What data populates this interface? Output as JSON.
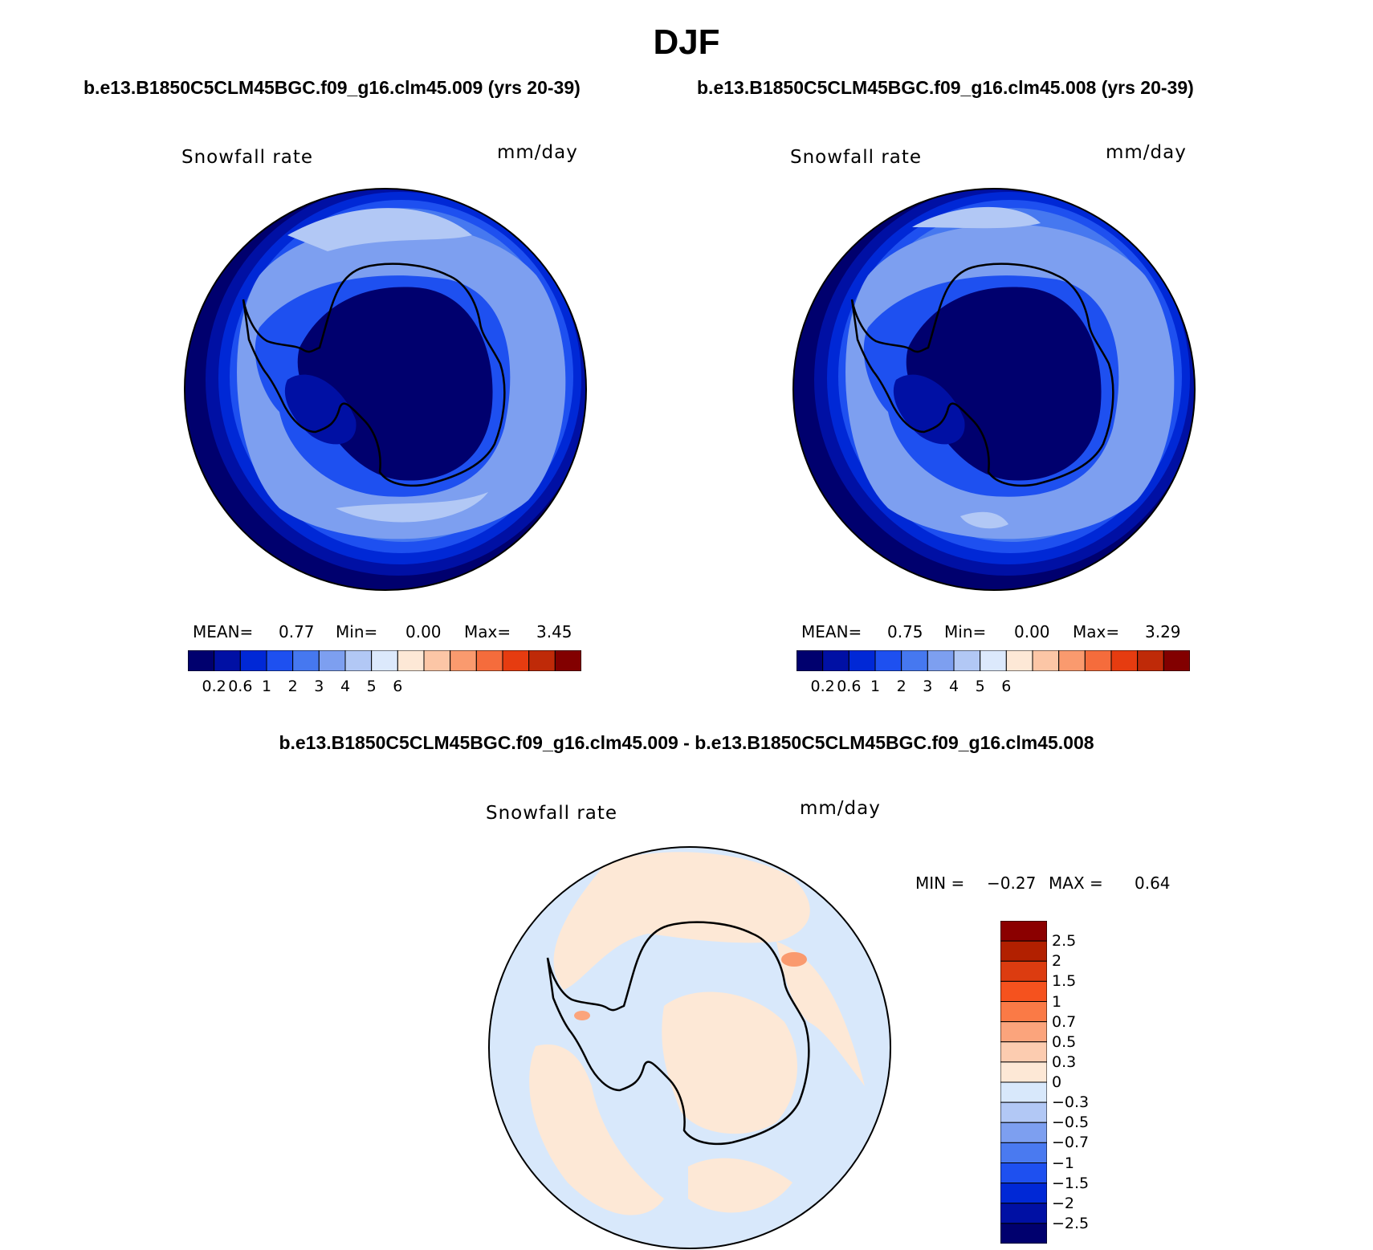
{
  "figure": {
    "season": "DJF",
    "case_left": "b.e13.B1850C5CLM45BGC.f09_g16.clm45.009 (yrs 20-39)",
    "case_right": "b.e13.B1850C5CLM45BGC.f09_g16.clm45.008 (yrs 20-39)",
    "diff_title": "b.e13.B1850C5CLM45BGC.f09_g16.clm45.009 - b.e13.B1850C5CLM45BGC.f09_g16.clm45.008"
  },
  "panels": [
    {
      "variable": "Snowfall rate",
      "units": "mm/day",
      "mean_label": "MEAN=",
      "mean": "0.77",
      "min_label": "Min=",
      "min": "0.00",
      "max_label": "Max=",
      "max": "3.45"
    },
    {
      "variable": "Snowfall rate",
      "units": "mm/day",
      "mean_label": "MEAN=",
      "mean": "0.75",
      "min_label": "Min=",
      "min": "0.00",
      "max_label": "Max=",
      "max": "3.29"
    }
  ],
  "diff_panel": {
    "variable": "Snowfall rate",
    "units": "mm/day",
    "min_label": "MIN =",
    "min": "−0.27",
    "max_label": "MAX =",
    "max": "0.64"
  },
  "colorbar_abs": {
    "colors": [
      "#00006e",
      "#0010a4",
      "#0028d6",
      "#1e50f0",
      "#4678f0",
      "#7d9ff0",
      "#b2c8f5",
      "#dce9fc",
      "#fde8d6",
      "#fcc6a6",
      "#fa9a6e",
      "#f56c3c",
      "#e63c10",
      "#bf2a08",
      "#820000"
    ],
    "tick_labels": [
      "0.2",
      "0.6",
      "1",
      "2",
      "3",
      "4",
      "5",
      "6"
    ]
  },
  "colorbar_diff": {
    "colors_top_to_bottom": [
      "#8b0000",
      "#b22000",
      "#dc3c10",
      "#f5521e",
      "#fa7a46",
      "#fba47c",
      "#fcccb0",
      "#fde8d6",
      "#d8e8fb",
      "#b2c8f5",
      "#7d9ff0",
      "#4a7af0",
      "#1e50f0",
      "#0028d6",
      "#0010a4",
      "#00006e"
    ],
    "tick_labels": [
      "2.5",
      "2",
      "1.5",
      "1",
      "0.7",
      "0.5",
      "0.3",
      "0",
      "−0.3",
      "−0.5",
      "−0.7",
      "−1",
      "−1.5",
      "−2",
      "−2.5"
    ]
  },
  "map_colors": {
    "ocean_outer": "#00006e",
    "ring2": "#0010a4",
    "ring3": "#0028d6",
    "ring4": "#1e50f0",
    "ring5": "#4678f0",
    "band": "#7d9ff0",
    "band_light": "#b2c8f5",
    "interior": "#00006e",
    "interior_mid": "#0010a4",
    "diff_neg": "#d8e8fb",
    "diff_pos": "#fde8d6",
    "diff_hot": "#fa9a6e"
  }
}
